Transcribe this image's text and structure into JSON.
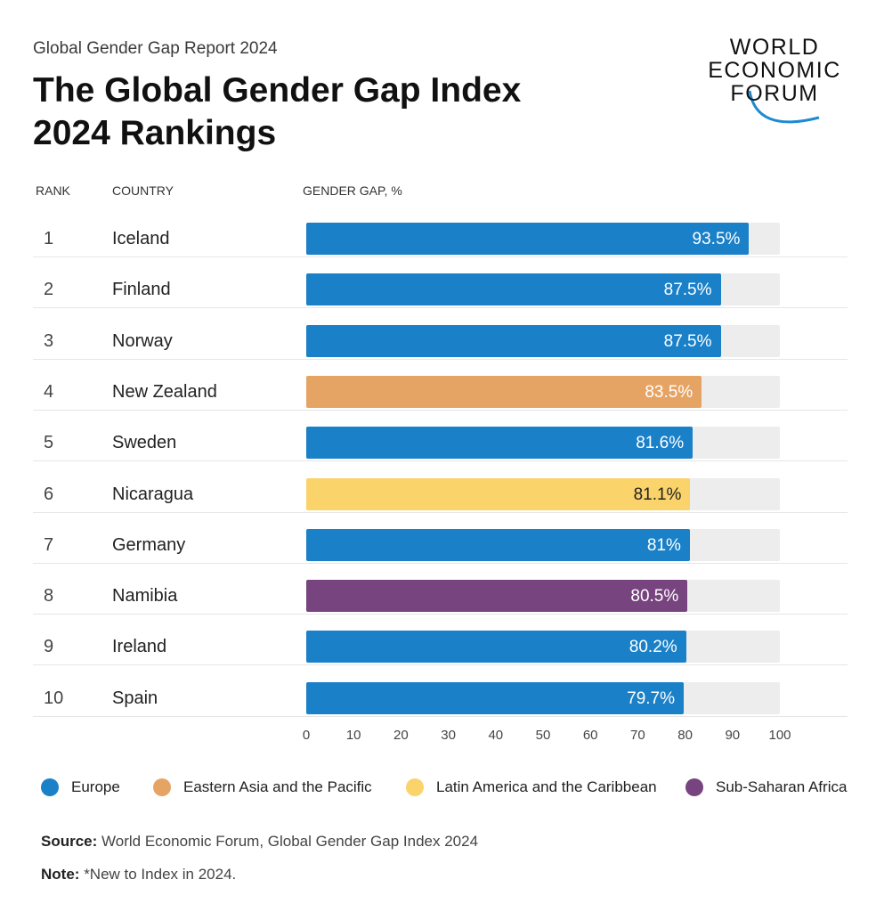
{
  "header": {
    "kicker": "Global Gender Gap Report 2024",
    "title": "The Global Gender Gap Index 2024 Rankings"
  },
  "logo": {
    "lines": [
      "WORLD",
      "ECONOMIC",
      "FORUM"
    ],
    "color": "#1e8ad3"
  },
  "columns": {
    "rank": "RANK",
    "country": "COUNTRY",
    "gap": "GENDER GAP, %"
  },
  "colors": {
    "Europe": "#1a80c8",
    "Eastern Asia and the Pacific": "#e6a464",
    "Latin America and the Caribbean": "#fbd36b",
    "Sub-Saharan Africa": "#77447f",
    "track": "#ededed"
  },
  "chart_data": {
    "type": "bar",
    "orientation": "horizontal",
    "xlim": [
      0,
      100
    ],
    "xticks": [
      "0",
      "10",
      "20",
      "30",
      "40",
      "50",
      "60",
      "70",
      "80",
      "90",
      "100"
    ],
    "rows": [
      {
        "rank": "1",
        "country": "Iceland",
        "value": 93.5,
        "label": "93.5%",
        "region": "Europe"
      },
      {
        "rank": "2",
        "country": "Finland",
        "value": 87.5,
        "label": "87.5%",
        "region": "Europe"
      },
      {
        "rank": "3",
        "country": "Norway",
        "value": 87.5,
        "label": "87.5%",
        "region": "Europe"
      },
      {
        "rank": "4",
        "country": "New Zealand",
        "value": 83.5,
        "label": "83.5%",
        "region": "Eastern Asia and the Pacific"
      },
      {
        "rank": "5",
        "country": "Sweden",
        "value": 81.6,
        "label": "81.6%",
        "region": "Europe"
      },
      {
        "rank": "6",
        "country": "Nicaragua",
        "value": 81.1,
        "label": "81.1%",
        "region": "Latin America and the Caribbean"
      },
      {
        "rank": "7",
        "country": "Germany",
        "value": 81,
        "label": "81%",
        "region": "Europe"
      },
      {
        "rank": "8",
        "country": "Namibia",
        "value": 80.5,
        "label": "80.5%",
        "region": "Sub-Saharan Africa"
      },
      {
        "rank": "9",
        "country": "Ireland",
        "value": 80.2,
        "label": "80.2%",
        "region": "Europe"
      },
      {
        "rank": "10",
        "country": "Spain",
        "value": 79.7,
        "label": "79.7%",
        "region": "Europe"
      }
    ],
    "legend": [
      {
        "name": "Europe",
        "color": "#1a80c8"
      },
      {
        "name": "Eastern Asia and the Pacific",
        "color": "#e6a464"
      },
      {
        "name": "Latin America and the Caribbean",
        "color": "#fbd36b"
      },
      {
        "name": "Sub-Saharan Africa",
        "color": "#77447f"
      }
    ]
  },
  "footer": {
    "source_label": "Source:",
    "source_text": "World Economic Forum, Global Gender Gap Index 2024",
    "note_label": "Note:",
    "note_text": "*New to Index in 2024."
  }
}
